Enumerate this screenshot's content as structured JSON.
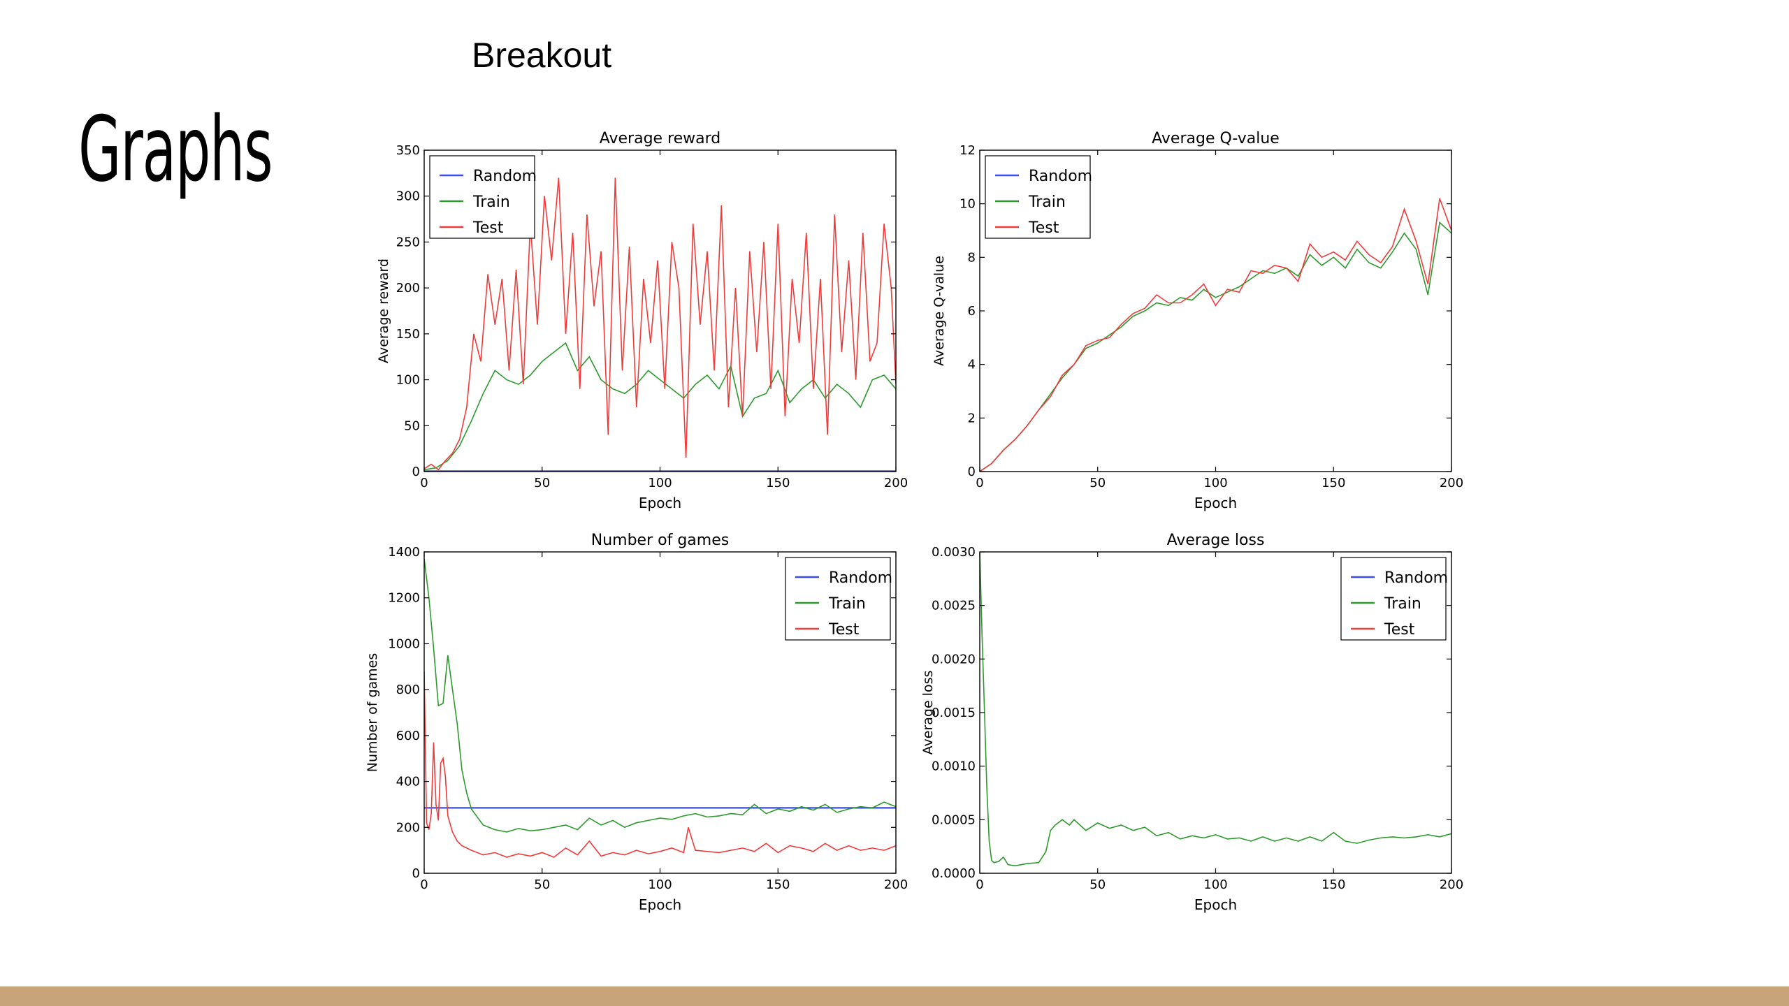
{
  "slide": {
    "title": "Graphs",
    "figure_title": "Breakout",
    "footer_color": "#c8a47a"
  },
  "chart_data": [
    {
      "type": "line",
      "title": "Average reward",
      "xlabel": "Epoch",
      "ylabel": "Average reward",
      "xlim": [
        0,
        200
      ],
      "ylim": [
        0,
        350
      ],
      "xticks": [
        0,
        50,
        100,
        150,
        200
      ],
      "yticks": [
        0,
        50,
        100,
        150,
        200,
        250,
        300,
        350
      ],
      "legend_position": "top-left",
      "grid": false,
      "series": [
        {
          "name": "Random",
          "color": "#3b4cf0",
          "x": [
            0,
            200
          ],
          "y": [
            0.5,
            0.5
          ]
        },
        {
          "name": "Train",
          "color": "#2e9a2e",
          "x": [
            0,
            5,
            10,
            15,
            20,
            25,
            30,
            35,
            40,
            45,
            50,
            55,
            60,
            65,
            70,
            75,
            80,
            85,
            90,
            95,
            100,
            105,
            110,
            115,
            120,
            125,
            130,
            135,
            140,
            145,
            150,
            155,
            160,
            165,
            170,
            175,
            180,
            185,
            190,
            195,
            200
          ],
          "y": [
            2,
            4,
            12,
            28,
            55,
            85,
            110,
            100,
            95,
            105,
            120,
            130,
            140,
            110,
            125,
            100,
            90,
            85,
            95,
            110,
            100,
            90,
            80,
            95,
            105,
            90,
            115,
            60,
            80,
            85,
            110,
            75,
            90,
            100,
            80,
            95,
            85,
            70,
            100,
            105,
            90
          ]
        },
        {
          "name": "Test",
          "color": "#f03b3b",
          "x": [
            0,
            3,
            6,
            9,
            12,
            15,
            18,
            21,
            24,
            27,
            30,
            33,
            36,
            39,
            42,
            45,
            48,
            51,
            54,
            57,
            60,
            63,
            66,
            69,
            72,
            75,
            78,
            81,
            84,
            87,
            90,
            93,
            96,
            99,
            102,
            105,
            108,
            111,
            114,
            117,
            120,
            123,
            126,
            129,
            132,
            135,
            138,
            141,
            144,
            147,
            150,
            153,
            156,
            159,
            162,
            165,
            168,
            171,
            174,
            177,
            180,
            183,
            186,
            189,
            192,
            195,
            198,
            200
          ],
          "y": [
            3,
            8,
            2,
            12,
            20,
            35,
            70,
            150,
            120,
            215,
            160,
            210,
            110,
            220,
            95,
            270,
            160,
            300,
            230,
            320,
            150,
            260,
            90,
            280,
            180,
            240,
            40,
            320,
            110,
            245,
            70,
            210,
            140,
            230,
            90,
            250,
            200,
            15,
            270,
            160,
            240,
            110,
            290,
            70,
            200,
            60,
            240,
            130,
            250,
            90,
            270,
            60,
            210,
            140,
            260,
            90,
            210,
            40,
            280,
            130,
            230,
            100,
            260,
            120,
            140,
            270,
            200,
            95
          ]
        }
      ]
    },
    {
      "type": "line",
      "title": "Average Q-value",
      "xlabel": "Epoch",
      "ylabel": "Average Q-value",
      "xlim": [
        0,
        200
      ],
      "ylim": [
        0,
        12
      ],
      "xticks": [
        0,
        50,
        100,
        150,
        200
      ],
      "yticks": [
        0,
        2,
        4,
        6,
        8,
        10,
        12
      ],
      "legend_position": "top-left",
      "grid": false,
      "series": [
        {
          "name": "Random",
          "color": "#3b4cf0",
          "x": [],
          "y": []
        },
        {
          "name": "Train",
          "color": "#2e9a2e",
          "x": [
            0,
            5,
            10,
            15,
            20,
            25,
            30,
            35,
            40,
            45,
            50,
            55,
            60,
            65,
            70,
            75,
            80,
            85,
            90,
            95,
            100,
            105,
            110,
            115,
            120,
            125,
            130,
            135,
            140,
            145,
            150,
            155,
            160,
            165,
            170,
            175,
            180,
            185,
            190,
            195,
            200
          ],
          "y": [
            0.0,
            0.3,
            0.8,
            1.2,
            1.7,
            2.3,
            2.9,
            3.5,
            4.0,
            4.6,
            4.8,
            5.1,
            5.4,
            5.8,
            6.0,
            6.3,
            6.2,
            6.5,
            6.4,
            6.8,
            6.5,
            6.7,
            6.9,
            7.2,
            7.5,
            7.4,
            7.6,
            7.3,
            8.1,
            7.7,
            8.0,
            7.6,
            8.3,
            7.8,
            7.6,
            8.2,
            8.9,
            8.3,
            6.6,
            9.3,
            8.9
          ]
        },
        {
          "name": "Test",
          "color": "#f03b3b",
          "x": [
            0,
            5,
            10,
            15,
            20,
            25,
            30,
            35,
            40,
            45,
            50,
            55,
            60,
            65,
            70,
            75,
            80,
            85,
            90,
            95,
            100,
            105,
            110,
            115,
            120,
            125,
            130,
            135,
            140,
            145,
            150,
            155,
            160,
            165,
            170,
            175,
            180,
            185,
            190,
            195,
            200
          ],
          "y": [
            0.0,
            0.3,
            0.8,
            1.2,
            1.7,
            2.3,
            2.8,
            3.6,
            4.0,
            4.7,
            4.9,
            5.0,
            5.5,
            5.9,
            6.1,
            6.6,
            6.3,
            6.3,
            6.6,
            7.0,
            6.2,
            6.8,
            6.7,
            7.5,
            7.4,
            7.7,
            7.6,
            7.1,
            8.5,
            8.0,
            8.2,
            7.9,
            8.6,
            8.1,
            7.8,
            8.4,
            9.8,
            8.6,
            7.0,
            10.2,
            9.0
          ]
        }
      ]
    },
    {
      "type": "line",
      "title": "Number of games",
      "xlabel": "Epoch",
      "ylabel": "Number of games",
      "xlim": [
        0,
        200
      ],
      "ylim": [
        0,
        1400
      ],
      "xticks": [
        0,
        50,
        100,
        150,
        200
      ],
      "yticks": [
        0,
        200,
        400,
        600,
        800,
        1000,
        1200,
        1400
      ],
      "legend_position": "top-right",
      "grid": false,
      "series": [
        {
          "name": "Random",
          "color": "#3b4cf0",
          "x": [
            0,
            200
          ],
          "y": [
            285,
            285
          ]
        },
        {
          "name": "Train",
          "color": "#2e9a2e",
          "x": [
            0,
            2,
            4,
            6,
            8,
            10,
            12,
            14,
            16,
            18,
            20,
            25,
            30,
            35,
            40,
            45,
            50,
            55,
            60,
            65,
            70,
            75,
            80,
            85,
            90,
            95,
            100,
            105,
            110,
            115,
            120,
            125,
            130,
            135,
            140,
            145,
            150,
            155,
            160,
            165,
            170,
            175,
            180,
            185,
            190,
            195,
            200
          ],
          "y": [
            1370,
            1200,
            980,
            730,
            740,
            950,
            800,
            650,
            450,
            350,
            280,
            210,
            190,
            180,
            195,
            185,
            190,
            200,
            210,
            190,
            240,
            210,
            230,
            200,
            220,
            230,
            240,
            235,
            250,
            260,
            245,
            250,
            260,
            255,
            300,
            260,
            280,
            270,
            290,
            275,
            300,
            265,
            280,
            290,
            285,
            310,
            290
          ]
        },
        {
          "name": "Test",
          "color": "#f03b3b",
          "x": [
            0,
            1,
            2,
            3,
            4,
            5,
            6,
            7,
            8,
            9,
            10,
            12,
            14,
            16,
            18,
            20,
            25,
            30,
            35,
            40,
            45,
            50,
            55,
            60,
            65,
            70,
            75,
            80,
            85,
            90,
            95,
            100,
            105,
            110,
            112,
            115,
            120,
            125,
            130,
            135,
            140,
            145,
            150,
            155,
            160,
            165,
            170,
            175,
            180,
            185,
            190,
            195,
            200
          ],
          "y": [
            880,
            220,
            190,
            260,
            570,
            300,
            230,
            480,
            500,
            420,
            250,
            180,
            140,
            120,
            110,
            100,
            80,
            90,
            70,
            85,
            75,
            90,
            70,
            110,
            80,
            140,
            75,
            90,
            80,
            100,
            85,
            95,
            110,
            90,
            200,
            100,
            95,
            90,
            100,
            110,
            95,
            130,
            90,
            120,
            110,
            95,
            130,
            100,
            120,
            100,
            110,
            100,
            120
          ]
        }
      ]
    },
    {
      "type": "line",
      "title": "Average loss",
      "xlabel": "Epoch",
      "ylabel": "Average loss",
      "xlim": [
        0,
        200
      ],
      "ylim": [
        0,
        0.003
      ],
      "xticks": [
        0,
        50,
        100,
        150,
        200
      ],
      "yticks": [
        "0.0000",
        "0.0005",
        "0.0010",
        "0.0015",
        "0.0020",
        "0.0025",
        "0.0030"
      ],
      "legend_position": "top-right",
      "grid": false,
      "series": [
        {
          "name": "Random",
          "color": "#3b4cf0",
          "x": [],
          "y": []
        },
        {
          "name": "Train",
          "color": "#2e9a2e",
          "x": [
            0,
            1,
            2,
            3,
            4,
            5,
            6,
            8,
            10,
            12,
            15,
            20,
            25,
            28,
            30,
            32,
            35,
            38,
            40,
            45,
            50,
            55,
            60,
            65,
            70,
            75,
            80,
            85,
            90,
            95,
            100,
            105,
            110,
            115,
            120,
            125,
            130,
            135,
            140,
            145,
            150,
            155,
            160,
            165,
            170,
            175,
            180,
            185,
            190,
            195,
            200
          ],
          "y": [
            0.003,
            0.0022,
            0.0015,
            0.0008,
            0.0003,
            0.00012,
            0.0001,
            0.00011,
            0.00015,
            8e-05,
            7e-05,
            9e-05,
            0.0001,
            0.0002,
            0.0004,
            0.00045,
            0.0005,
            0.00045,
            0.0005,
            0.0004,
            0.00047,
            0.00042,
            0.00045,
            0.0004,
            0.00043,
            0.00035,
            0.00038,
            0.00032,
            0.00035,
            0.00033,
            0.00036,
            0.00032,
            0.00033,
            0.0003,
            0.00034,
            0.0003,
            0.00033,
            0.0003,
            0.00034,
            0.0003,
            0.00038,
            0.0003,
            0.00028,
            0.00031,
            0.00033,
            0.00034,
            0.00033,
            0.00034,
            0.00036,
            0.00034,
            0.00037
          ]
        },
        {
          "name": "Test",
          "color": "#f03b3b",
          "x": [],
          "y": []
        }
      ]
    }
  ]
}
